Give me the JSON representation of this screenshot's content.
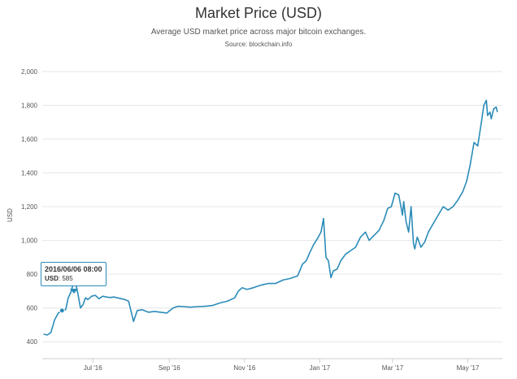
{
  "header": {
    "title": "Market Price (USD)",
    "subtitle": "Average USD market price across major bitcoin exchanges.",
    "source": "Source: blockchain.info"
  },
  "tooltip": {
    "date": "2016/06/06 08:00",
    "series_label": "USD",
    "value": "585"
  },
  "colors": {
    "line": "#2b8cb8",
    "grid": "#e6e6e6",
    "axis": "#cccccc"
  },
  "chart_data": {
    "type": "line",
    "title": "Market Price (USD)",
    "subtitle": "Average USD market price across major bitcoin exchanges.",
    "ylabel": "USD",
    "xlabel": "",
    "ylim": [
      300,
      2000
    ],
    "xlim": [
      "2016-05-21",
      "2017-05-29"
    ],
    "y_ticks": [
      "2,000",
      "1,800",
      "1,600",
      "1,400",
      "1,200",
      "1,000",
      "800",
      "600",
      "400"
    ],
    "y_tick_values": [
      2000,
      1800,
      1600,
      1400,
      1200,
      1000,
      800,
      600,
      400
    ],
    "x_ticks": [
      {
        "label": "Jul '16",
        "date": "2016-07-01"
      },
      {
        "label": "Sep '16",
        "date": "2016-09-01"
      },
      {
        "label": "Nov '16",
        "date": "2016-11-01"
      },
      {
        "label": "Jan '17",
        "date": "2017-01-01"
      },
      {
        "label": "Mar '17",
        "date": "2017-03-01"
      },
      {
        "label": "May '17",
        "date": "2017-05-01"
      }
    ],
    "grid": true,
    "legend": "none",
    "series": [
      {
        "dates": [
          "2016-05-22",
          "2016-05-25",
          "2016-05-28",
          "2016-05-31",
          "2016-06-03",
          "2016-06-06",
          "2016-06-09",
          "2016-06-11",
          "2016-06-13",
          "2016-06-15",
          "2016-06-17",
          "2016-06-19",
          "2016-06-21",
          "2016-06-23",
          "2016-06-25",
          "2016-06-27",
          "2016-06-30",
          "2016-07-03",
          "2016-07-06",
          "2016-07-09",
          "2016-07-12",
          "2016-07-15",
          "2016-07-18",
          "2016-07-21",
          "2016-07-24",
          "2016-07-27",
          "2016-07-30",
          "2016-08-01",
          "2016-08-03",
          "2016-08-06",
          "2016-08-10",
          "2016-08-15",
          "2016-08-20",
          "2016-08-25",
          "2016-08-30",
          "2016-09-04",
          "2016-09-08",
          "2016-09-13",
          "2016-09-18",
          "2016-09-24",
          "2016-09-30",
          "2016-10-06",
          "2016-10-12",
          "2016-10-18",
          "2016-10-24",
          "2016-10-27",
          "2016-10-30",
          "2016-11-03",
          "2016-11-08",
          "2016-11-14",
          "2016-11-20",
          "2016-11-26",
          "2016-12-02",
          "2016-12-08",
          "2016-12-14",
          "2016-12-18",
          "2016-12-21",
          "2016-12-24",
          "2016-12-27",
          "2016-12-30",
          "2017-01-02",
          "2017-01-04",
          "2017-01-06",
          "2017-01-08",
          "2017-01-10",
          "2017-01-12",
          "2017-01-15",
          "2017-01-18",
          "2017-01-22",
          "2017-01-26",
          "2017-01-30",
          "2017-02-03",
          "2017-02-07",
          "2017-02-10",
          "2017-02-14",
          "2017-02-18",
          "2017-02-22",
          "2017-02-25",
          "2017-02-28",
          "2017-03-03",
          "2017-03-06",
          "2017-03-09",
          "2017-03-10",
          "2017-03-12",
          "2017-03-14",
          "2017-03-16",
          "2017-03-18",
          "2017-03-19",
          "2017-03-21",
          "2017-03-24",
          "2017-03-27",
          "2017-03-30",
          "2017-04-03",
          "2017-04-07",
          "2017-04-11",
          "2017-04-15",
          "2017-04-19",
          "2017-04-23",
          "2017-04-27",
          "2017-04-30",
          "2017-05-03",
          "2017-05-06",
          "2017-05-09",
          "2017-05-12",
          "2017-05-14",
          "2017-05-16",
          "2017-05-17",
          "2017-05-19",
          "2017-05-20",
          "2017-05-22",
          "2017-05-24",
          "2017-05-25"
        ],
        "values": [
          445,
          440,
          455,
          530,
          570,
          585,
          590,
          660,
          690,
          740,
          750,
          680,
          600,
          620,
          660,
          650,
          670,
          675,
          655,
          670,
          665,
          662,
          665,
          660,
          655,
          650,
          640,
          580,
          520,
          585,
          590,
          575,
          580,
          575,
          570,
          600,
          610,
          608,
          605,
          608,
          610,
          615,
          630,
          640,
          660,
          700,
          720,
          710,
          720,
          735,
          745,
          745,
          765,
          775,
          790,
          860,
          880,
          930,
          975,
          1010,
          1050,
          1130,
          900,
          880,
          780,
          820,
          830,
          880,
          920,
          940,
          960,
          1020,
          1050,
          1000,
          1030,
          1060,
          1120,
          1190,
          1200,
          1280,
          1270,
          1150,
          1230,
          1110,
          1050,
          1200,
          980,
          950,
          1020,
          960,
          990,
          1050,
          1100,
          1150,
          1200,
          1180,
          1200,
          1240,
          1290,
          1350,
          1450,
          1580,
          1560,
          1700,
          1800,
          1830,
          1740,
          1760,
          1720,
          1780,
          1790,
          1760
        ]
      }
    ]
  }
}
